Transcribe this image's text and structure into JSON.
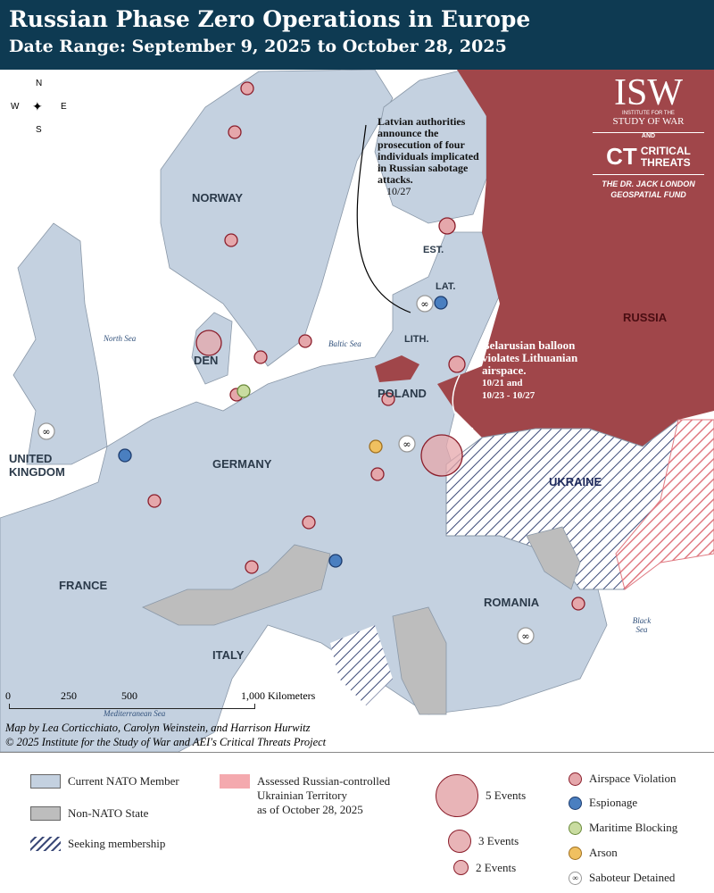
{
  "header": {
    "title": "Russian Phase Zero Operations in Europe",
    "subtitle": "Date Range: September 9, 2025 to October 28, 2025"
  },
  "colors": {
    "header": "#0e3a52",
    "nato": "#c4d1e0",
    "non_nato": "#bdbdbd",
    "russia": "#a0464a",
    "occupied": "#f4a9ae",
    "airspace": "#e5a7ab",
    "espionage": "#4a7fc0",
    "maritime": "#c9dca0",
    "arson": "#f0c060",
    "saboteur": "#ffffff"
  },
  "logo": {
    "isw": "ISW",
    "isw_sub1": "INSTITUTE FOR THE",
    "isw_sub2": "STUDY OF WAR",
    "and": "AND",
    "ct1": "CRITICAL",
    "ct2": "THREATS",
    "ct_mark": "CT",
    "fund1": "THE DR. JACK LONDON",
    "fund2": "GEOSPATIAL FUND"
  },
  "compass": {
    "n": "N",
    "s": "S",
    "e": "E",
    "w": "W"
  },
  "labels": {
    "norway": "NORWAY",
    "est": "EST.",
    "lat": "LAT.",
    "lith": "LITH.",
    "russia": "RUSSIA",
    "den": "DEN",
    "poland": "POLAND",
    "uk": "UNITED KINGDOM",
    "germany": "GERMANY",
    "ukraine": "UKRAINE",
    "france": "FRANCE",
    "romania": "ROMANIA",
    "italy": "ITALY"
  },
  "seas": {
    "north": "North Sea",
    "baltic": "Baltic Sea",
    "black": "Black Sea",
    "med": "Mediterranean Sea"
  },
  "annotations": {
    "latvia": {
      "text": "Latvian authorities announce the prosecution of four individuals implicated in Russian sabotage attacks.",
      "date": "10/27"
    },
    "lithuania": {
      "text": "Belarusian balloon violates Lithuanian airspace.",
      "date1": "10/21 and",
      "date2": "10/23 - 10/27"
    }
  },
  "scale": {
    "ticks": [
      "0",
      "250",
      "500",
      "1,000 Kilometers"
    ]
  },
  "credits": {
    "line1": "Map by Lea Corticchiato, Carolyn Weinstein, and Harrison Hurwitz",
    "line2": "© 2025 Institute for the Study of War and AEI's Critical Threats Project"
  },
  "events": [
    {
      "type": "airspace",
      "count": 1
    },
    {
      "type": "airspace",
      "count": 1
    },
    {
      "type": "airspace",
      "count": 1
    },
    {
      "type": "airspace",
      "count": 2
    },
    {
      "type": "airspace",
      "count": 1
    },
    {
      "type": "airspace",
      "count": 1
    },
    {
      "type": "airspace",
      "count": 3
    },
    {
      "type": "airspace",
      "count": 1
    },
    {
      "type": "maritime",
      "count": 1
    },
    {
      "type": "airspace",
      "count": 1
    },
    {
      "type": "airspace",
      "count": 2
    },
    {
      "type": "espionage",
      "count": 1
    },
    {
      "type": "saboteur",
      "count": 1
    },
    {
      "type": "espionage",
      "count": 1
    },
    {
      "type": "airspace",
      "count": 1
    },
    {
      "type": "arson",
      "count": 1
    },
    {
      "type": "saboteur",
      "count": 1
    },
    {
      "type": "airspace",
      "count": 5
    },
    {
      "type": "airspace",
      "count": 1
    },
    {
      "type": "airspace",
      "count": 1
    },
    {
      "type": "airspace",
      "count": 1
    },
    {
      "type": "espionage",
      "count": 1
    },
    {
      "type": "airspace",
      "count": 1
    },
    {
      "type": "saboteur",
      "count": 1
    },
    {
      "type": "saboteur",
      "count": 1
    }
  ],
  "legend": {
    "nato": "Current NATO Member",
    "non_nato": "Non-NATO State",
    "seeking": "Seeking membership",
    "occupied1": "Assessed Russian-controlled",
    "occupied2": "Ukrainian Territory",
    "occupied3": "as of October 28, 2025",
    "five": "5 Events",
    "three": "3 Events",
    "two": "2 Events",
    "airspace": "Airspace Violation",
    "espionage": "Espionage",
    "maritime": "Maritime Blocking",
    "arson": "Arson",
    "saboteur": "Saboteur Detained"
  }
}
